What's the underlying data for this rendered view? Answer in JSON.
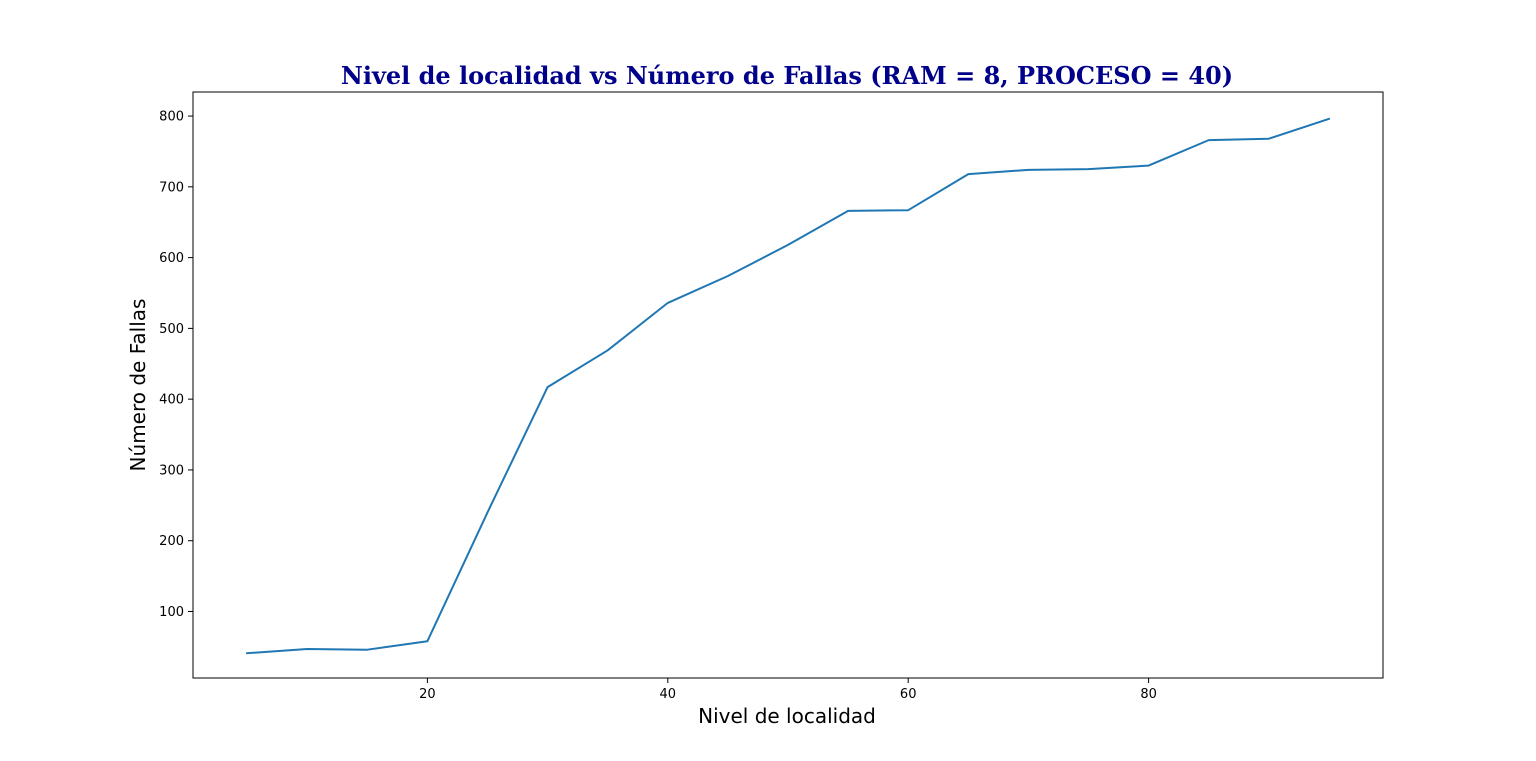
{
  "chart_data": {
    "type": "line",
    "title": "Nivel de localidad vs Número de Fallas (RAM = 8, PROCESO = 40)",
    "xlabel": "Nivel de localidad",
    "ylabel": "Número de Fallas",
    "xlim": [
      0.5,
      99.5
    ],
    "ylim": [
      6,
      834
    ],
    "x_ticks": [
      20,
      40,
      60,
      80
    ],
    "y_ticks": [
      100,
      200,
      300,
      400,
      500,
      600,
      700,
      800
    ],
    "grid": false,
    "legend": "none",
    "series": [
      {
        "color": "#1f77b4",
        "x": [
          5,
          10,
          15,
          20,
          25,
          30,
          35,
          40,
          45,
          50,
          55,
          60,
          65,
          70,
          75,
          80,
          85,
          90,
          95
        ],
        "values": [
          41,
          47,
          46,
          58,
          240,
          417,
          469,
          536,
          574,
          618,
          666,
          667,
          718,
          724,
          725,
          730,
          766,
          768,
          796
        ]
      }
    ]
  }
}
